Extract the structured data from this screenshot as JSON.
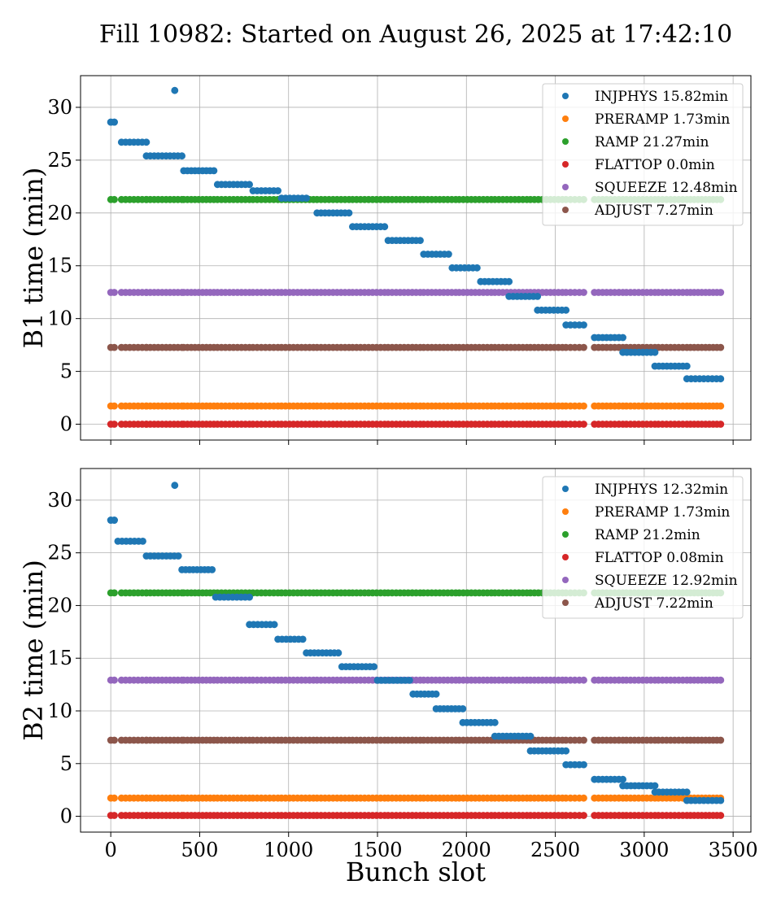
{
  "figure": {
    "title": "Fill 10982: Started on August 26, 2025 at 17:42:10"
  },
  "chart_data": [
    {
      "type": "scatter",
      "id": "b1",
      "ylabel": "B1 time (min)",
      "xlabel": "",
      "xlim": [
        -170,
        3600
      ],
      "ylim": [
        -1.5,
        33
      ],
      "xticks": [
        0,
        500,
        1000,
        1500,
        2000,
        2500,
        3000,
        3500
      ],
      "yticks": [
        0,
        5,
        10,
        15,
        20,
        25,
        30
      ],
      "show_xtick_labels": false,
      "grid": true,
      "legend_position": "top-right",
      "bunch_segments": [
        [
          0,
          20
        ],
        [
          60,
          200
        ],
        [
          200,
          400
        ],
        [
          410,
          580
        ],
        [
          600,
          780
        ],
        [
          800,
          940
        ],
        [
          960,
          1140
        ],
        [
          1160,
          1340
        ],
        [
          1360,
          1540
        ],
        [
          1560,
          1740
        ],
        [
          1760,
          1940
        ],
        [
          1960,
          2140
        ],
        [
          2160,
          2340
        ],
        [
          2360,
          2540
        ],
        [
          2560,
          2660
        ],
        [
          2720,
          2880
        ],
        [
          2900,
          3060
        ],
        [
          3080,
          3240
        ],
        [
          3260,
          3430
        ]
      ],
      "series": [
        {
          "name": "INJPHYS 15.82min",
          "color": "#1f77b4",
          "points": [
            [
              0,
              28.6
            ],
            [
              20,
              28.6
            ],
            [
              360,
              31.6
            ]
          ],
          "segments": [
            [
              0,
              20,
              28.6
            ],
            [
              60,
              200,
              26.7
            ],
            [
              200,
              400,
              25.4
            ],
            [
              410,
              580,
              24.0
            ],
            [
              600,
              780,
              22.7
            ],
            [
              800,
              940,
              22.1
            ],
            [
              960,
              1100,
              21.4
            ],
            [
              1160,
              1340,
              20.0
            ],
            [
              1360,
              1540,
              18.7
            ],
            [
              1560,
              1740,
              17.4
            ],
            [
              1760,
              1900,
              16.1
            ],
            [
              1920,
              2060,
              14.8
            ],
            [
              2080,
              2240,
              13.5
            ],
            [
              2240,
              2400,
              12.1
            ],
            [
              2400,
              2560,
              10.8
            ],
            [
              2560,
              2660,
              9.4
            ],
            [
              2720,
              2880,
              8.2
            ],
            [
              2880,
              3060,
              6.8
            ],
            [
              3060,
              3240,
              5.5
            ],
            [
              3240,
              3430,
              4.3
            ]
          ]
        },
        {
          "name": "PRERAMP 1.73min",
          "color": "#ff7f0e",
          "level": 1.73
        },
        {
          "name": "RAMP 21.27min",
          "color": "#2ca02c",
          "level": 21.27
        },
        {
          "name": "FLATTOP 0.0min",
          "color": "#d62728",
          "level": 0.0
        },
        {
          "name": "SQUEEZE 12.48min",
          "color": "#9467bd",
          "level": 12.48
        },
        {
          "name": "ADJUST 7.27min",
          "color": "#8c564b",
          "level": 7.27
        }
      ]
    },
    {
      "type": "scatter",
      "id": "b2",
      "ylabel": "B2 time (min)",
      "xlabel": "Bunch slot",
      "xlim": [
        -170,
        3600
      ],
      "ylim": [
        -1.5,
        33
      ],
      "xticks": [
        0,
        500,
        1000,
        1500,
        2000,
        2500,
        3000,
        3500
      ],
      "yticks": [
        0,
        5,
        10,
        15,
        20,
        25,
        30
      ],
      "show_xtick_labels": true,
      "grid": true,
      "legend_position": "top-right",
      "bunch_segments": [
        [
          0,
          20
        ],
        [
          60,
          200
        ],
        [
          200,
          400
        ],
        [
          410,
          580
        ],
        [
          600,
          780
        ],
        [
          800,
          940
        ],
        [
          960,
          1140
        ],
        [
          1160,
          1340
        ],
        [
          1360,
          1540
        ],
        [
          1560,
          1740
        ],
        [
          1760,
          1940
        ],
        [
          1960,
          2140
        ],
        [
          2160,
          2340
        ],
        [
          2360,
          2540
        ],
        [
          2560,
          2660
        ],
        [
          2720,
          2880
        ],
        [
          2900,
          3060
        ],
        [
          3080,
          3240
        ],
        [
          3260,
          3430
        ]
      ],
      "series": [
        {
          "name": "INJPHYS 12.32min",
          "color": "#1f77b4",
          "points": [
            [
              0,
              28.1
            ],
            [
              20,
              28.1
            ],
            [
              360,
              31.4
            ]
          ],
          "segments": [
            [
              0,
              20,
              28.1
            ],
            [
              40,
              180,
              26.1
            ],
            [
              200,
              380,
              24.7
            ],
            [
              400,
              570,
              23.4
            ],
            [
              590,
              780,
              20.8
            ],
            [
              780,
              920,
              18.2
            ],
            [
              940,
              1080,
              16.8
            ],
            [
              1100,
              1280,
              15.5
            ],
            [
              1300,
              1480,
              14.2
            ],
            [
              1500,
              1680,
              12.9
            ],
            [
              1700,
              1830,
              11.6
            ],
            [
              1830,
              1980,
              10.2
            ],
            [
              1980,
              2160,
              8.9
            ],
            [
              2160,
              2360,
              7.6
            ],
            [
              2360,
              2560,
              6.2
            ],
            [
              2560,
              2660,
              4.9
            ],
            [
              2720,
              2880,
              3.5
            ],
            [
              2880,
              3060,
              2.9
            ],
            [
              3060,
              3240,
              2.3
            ],
            [
              3240,
              3430,
              1.5
            ]
          ]
        },
        {
          "name": "PRERAMP 1.73min",
          "color": "#ff7f0e",
          "level": 1.73
        },
        {
          "name": "RAMP 21.2min",
          "color": "#2ca02c",
          "level": 21.2
        },
        {
          "name": "FLATTOP 0.08min",
          "color": "#d62728",
          "level": 0.08
        },
        {
          "name": "SQUEEZE 12.92min",
          "color": "#9467bd",
          "level": 12.92
        },
        {
          "name": "ADJUST 7.22min",
          "color": "#8c564b",
          "level": 7.22
        }
      ]
    }
  ]
}
